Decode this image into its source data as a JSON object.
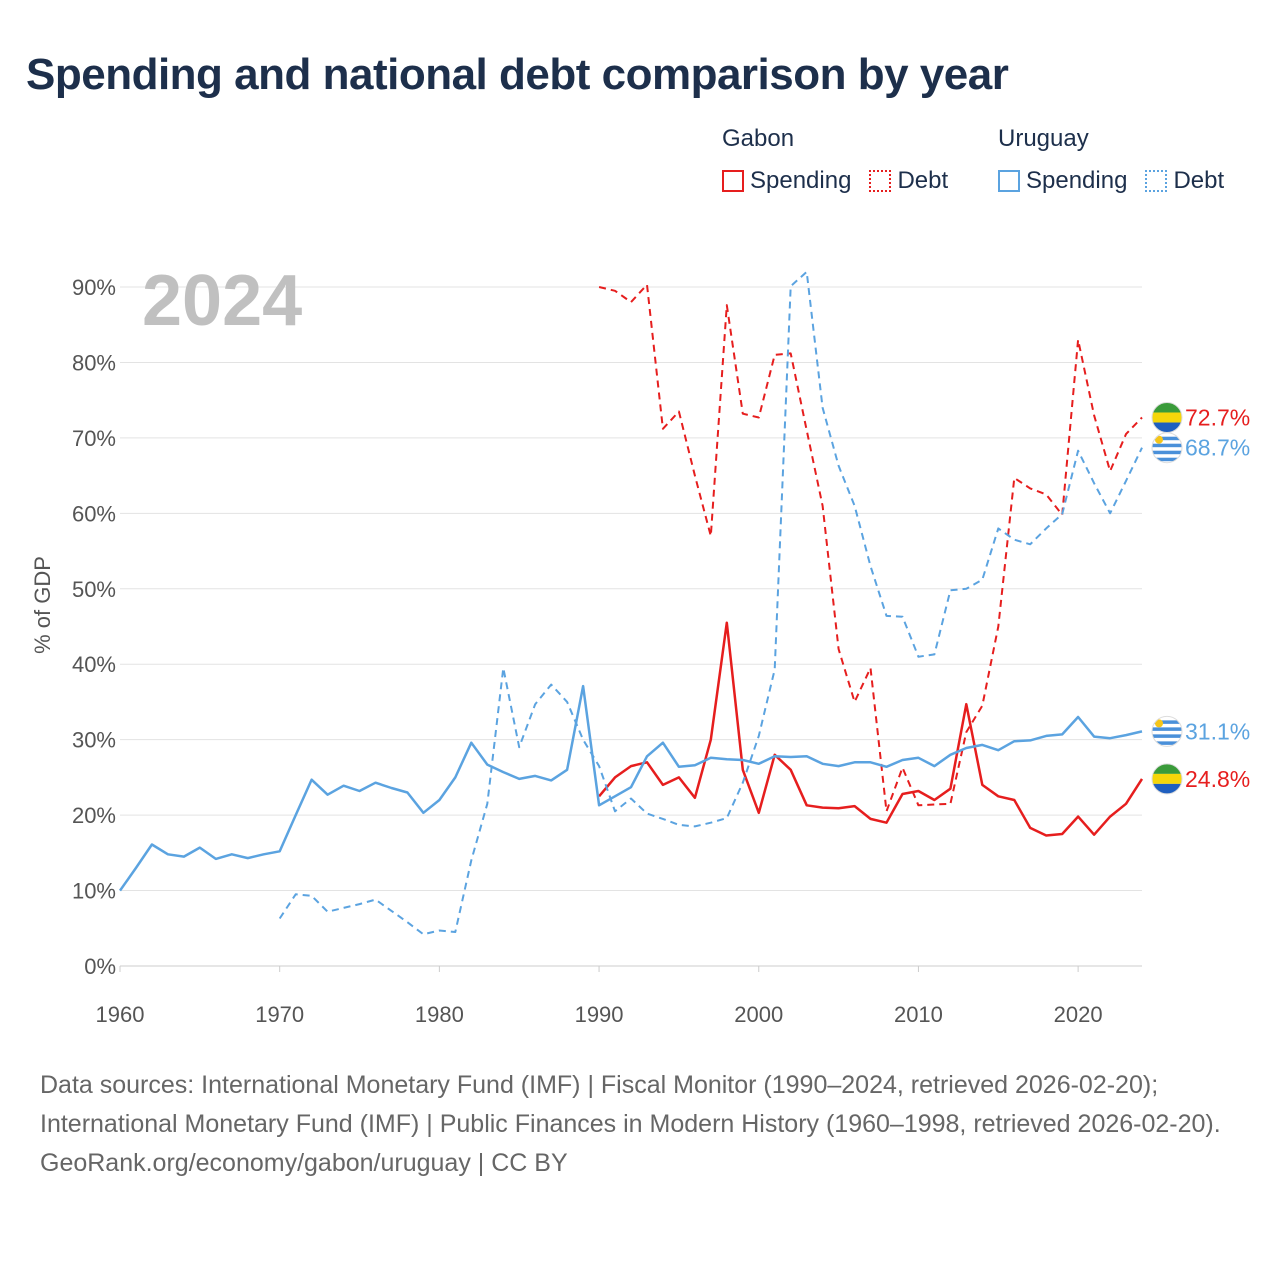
{
  "title": "Spending and national debt comparison by year",
  "legend": {
    "gabon": {
      "title": "Gabon",
      "spending": "Spending",
      "debt": "Debt"
    },
    "uruguay": {
      "title": "Uruguay",
      "spending": "Spending",
      "debt": "Debt"
    }
  },
  "year_label": "2024",
  "ylabel": "% of GDP",
  "footer": {
    "sources": "Data sources: International Monetary Fund (IMF) | Fiscal Monitor (1990–2024, retrieved 2026-02-20); International Monetary Fund (IMF) | Public Finances in Modern History (1960–1998, retrieved 2026-02-20).",
    "credit": "GeoRank.org/economy/gabon/uruguay | CC BY"
  },
  "colors": {
    "gabon": "#e61e1e",
    "uruguay": "#5ba3e0",
    "title": "#1d2f4b"
  },
  "chart_data": {
    "type": "line",
    "title": "Spending and national debt comparison by year",
    "xlabel": "",
    "ylabel": "% of GDP",
    "xlim": [
      1960,
      2024
    ],
    "ylim": [
      0,
      90
    ],
    "xticks": [
      1960,
      1970,
      1980,
      1990,
      2000,
      2010,
      2020
    ],
    "xtick_labels": [
      "1960",
      "1970",
      "1980",
      "1990",
      "2000",
      "2010",
      "2020"
    ],
    "yticks": [
      0,
      10,
      20,
      30,
      40,
      50,
      60,
      70,
      80,
      90
    ],
    "ytick_labels": [
      "0%",
      "10%",
      "20%",
      "30%",
      "40%",
      "50%",
      "60%",
      "70%",
      "80%",
      "90%"
    ],
    "grid": true,
    "series": [
      {
        "name": "Gabon Spending",
        "country": "gabon",
        "style": "solid",
        "end_label": "24.8%",
        "x": [
          1990,
          1991,
          1992,
          1993,
          1994,
          1995,
          1996,
          1997,
          1998,
          1999,
          2000,
          2001,
          2002,
          2003,
          2004,
          2005,
          2006,
          2007,
          2008,
          2009,
          2010,
          2011,
          2012,
          2013,
          2014,
          2015,
          2016,
          2017,
          2018,
          2019,
          2020,
          2021,
          2022,
          2023,
          2024
        ],
        "values": [
          22.5,
          25.0,
          26.5,
          27.0,
          24.0,
          25.0,
          22.3,
          30.0,
          45.5,
          26.0,
          20.3,
          28.0,
          26.0,
          21.3,
          21.0,
          20.9,
          21.2,
          19.5,
          19.0,
          22.8,
          23.2,
          22.0,
          23.5,
          34.7,
          24.0,
          22.5,
          22.0,
          18.3,
          17.3,
          17.5,
          19.8,
          17.4,
          19.8,
          21.5,
          24.8
        ]
      },
      {
        "name": "Gabon Debt",
        "country": "gabon",
        "style": "dashed",
        "end_label": "72.7%",
        "x": [
          1990,
          1991,
          1992,
          1993,
          1994,
          1995,
          1996,
          1997,
          1998,
          1999,
          2000,
          2001,
          2002,
          2003,
          2004,
          2005,
          2006,
          2007,
          2008,
          2009,
          2010,
          2011,
          2012,
          2013,
          2014,
          2015,
          2016,
          2017,
          2018,
          2019,
          2020,
          2021,
          2022,
          2023,
          2024
        ],
        "values": [
          90.0,
          89.5,
          88.0,
          90.3,
          71.2,
          73.5,
          65.0,
          57.0,
          87.6,
          73.2,
          72.7,
          81.0,
          81.2,
          71.0,
          61.0,
          42.0,
          35.0,
          39.5,
          20.5,
          26.3,
          21.3,
          21.4,
          21.5,
          31.0,
          34.5,
          45.0,
          64.7,
          63.3,
          62.5,
          59.8,
          83.0,
          73.0,
          65.6,
          70.5,
          72.7
        ]
      },
      {
        "name": "Uruguay Spending",
        "country": "uruguay",
        "style": "solid",
        "end_label": "31.1%",
        "x": [
          1960,
          1961,
          1962,
          1963,
          1964,
          1965,
          1966,
          1967,
          1968,
          1969,
          1970,
          1971,
          1972,
          1973,
          1974,
          1975,
          1976,
          1977,
          1978,
          1979,
          1980,
          1981,
          1982,
          1983,
          1984,
          1985,
          1986,
          1987,
          1988,
          1989,
          1990,
          1991,
          1992,
          1993,
          1994,
          1995,
          1996,
          1997,
          1998,
          1999,
          2000,
          2001,
          2002,
          2003,
          2004,
          2005,
          2006,
          2007,
          2008,
          2009,
          2010,
          2011,
          2012,
          2013,
          2014,
          2015,
          2016,
          2017,
          2018,
          2019,
          2020,
          2021,
          2022,
          2023,
          2024
        ],
        "values": [
          10.0,
          13.0,
          16.1,
          14.8,
          14.5,
          15.7,
          14.2,
          14.8,
          14.3,
          14.8,
          15.2,
          20.0,
          24.7,
          22.7,
          23.9,
          23.2,
          24.3,
          23.6,
          23.0,
          20.3,
          22.0,
          25.0,
          29.6,
          26.7,
          25.7,
          24.8,
          25.2,
          24.6,
          26.0,
          37.1,
          21.3,
          22.5,
          23.7,
          27.8,
          29.6,
          26.4,
          26.6,
          27.6,
          27.4,
          27.3,
          26.8,
          27.8,
          27.7,
          27.8,
          26.8,
          26.5,
          27.0,
          27.0,
          26.4,
          27.3,
          27.6,
          26.5,
          28.0,
          28.9,
          29.3,
          28.6,
          29.8,
          29.9,
          30.5,
          30.7,
          33.0,
          30.4,
          30.2,
          30.6,
          31.1
        ]
      },
      {
        "name": "Uruguay Debt",
        "country": "uruguay",
        "style": "dashed",
        "end_label": "68.7%",
        "x": [
          1970,
          1971,
          1972,
          1973,
          1974,
          1975,
          1976,
          1977,
          1978,
          1979,
          1980,
          1981,
          1982,
          1983,
          1984,
          1985,
          1986,
          1987,
          1988,
          1989,
          1990,
          1991,
          1992,
          1993,
          1994,
          1995,
          1996,
          1997,
          1998,
          1999,
          2000,
          2001,
          2002,
          2003,
          2004,
          2005,
          2006,
          2007,
          2008,
          2009,
          2010,
          2011,
          2012,
          2013,
          2014,
          2015,
          2016,
          2017,
          2018,
          2019,
          2020,
          2021,
          2022,
          2023,
          2024
        ],
        "values": [
          6.3,
          9.5,
          9.3,
          7.2,
          7.7,
          8.2,
          8.8,
          7.3,
          5.8,
          4.2,
          4.7,
          4.5,
          14.0,
          21.5,
          39.5,
          29.0,
          34.7,
          37.3,
          35.0,
          30.0,
          26.5,
          20.5,
          22.2,
          20.2,
          19.5,
          18.7,
          18.5,
          19.0,
          19.6,
          24.3,
          30.5,
          39.3,
          90.1,
          92.0,
          74.0,
          66.3,
          61.0,
          53.0,
          46.4,
          46.3,
          41.0,
          41.3,
          49.8,
          50.0,
          51.2,
          58.0,
          56.5,
          55.9,
          58.0,
          59.9,
          68.3,
          64.0,
          60.0,
          64.3,
          68.7
        ]
      }
    ]
  }
}
